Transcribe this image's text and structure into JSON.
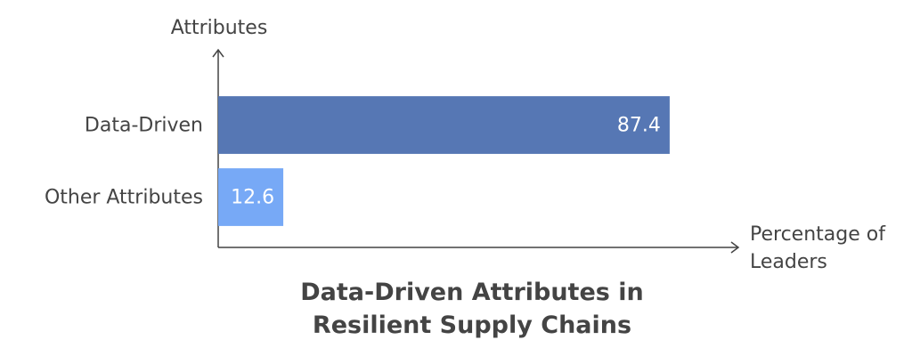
{
  "chart_data": {
    "type": "bar",
    "orientation": "horizontal",
    "title": "Data-Driven Attributes in Resilient Supply Chains",
    "x_label": "Percentage of Leaders",
    "y_label": "Attributes",
    "categories": [
      "Data-Driven",
      "Other Attributes"
    ],
    "values": [
      87.4,
      12.6
    ],
    "colors": [
      "#5677b4",
      "#77a9f6"
    ],
    "xlim": [
      0,
      100
    ],
    "grid": false
  }
}
